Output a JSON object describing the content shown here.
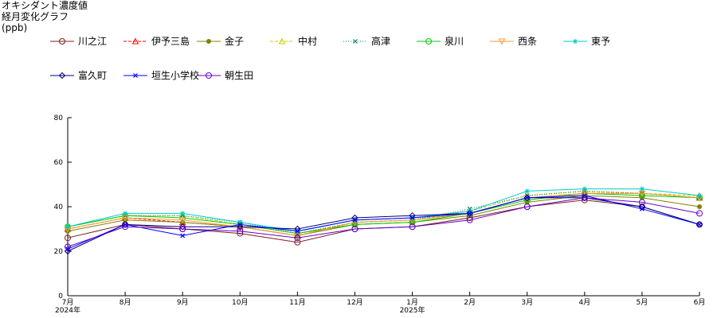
{
  "title": "オキシダント濃度値",
  "subtitle": "経月変化グラフ",
  "unit": "(ppb)",
  "chart_data": {
    "type": "line",
    "title": "オキシダント濃度値",
    "subtitle": "経月変化グラフ",
    "ylabel": "(ppb)",
    "xlabel": "",
    "ylim": [
      0,
      80
    ],
    "yticks": [
      0,
      20,
      40,
      60,
      80
    ],
    "grid": false,
    "legend_position": "top",
    "categories": [
      "7月",
      "8月",
      "9月",
      "10月",
      "11月",
      "12月",
      "1月",
      "2月",
      "3月",
      "4月",
      "5月",
      "6月"
    ],
    "year_labels": [
      {
        "index": 0,
        "label": "2024年"
      },
      {
        "index": 6,
        "label": "2025年"
      }
    ],
    "series": [
      {
        "name": "川之江",
        "color": "#7a1f1f",
        "marker": "circle",
        "dash": "",
        "values": [
          26,
          32,
          30,
          28,
          24,
          30,
          31,
          35,
          40,
          43,
          40,
          32
        ]
      },
      {
        "name": "伊予三島",
        "color": "#ff0000",
        "marker": "triangle",
        "dash": "4,2",
        "values": [
          30,
          35,
          33,
          31,
          27,
          33,
          34,
          37,
          44,
          46,
          46,
          44
        ]
      },
      {
        "name": "金子",
        "color": "#808000",
        "marker": "dot",
        "dash": "",
        "values": [
          29,
          34,
          33,
          31,
          27,
          32,
          33,
          36,
          42,
          45,
          44,
          40
        ]
      },
      {
        "name": "中村",
        "color": "#cccc00",
        "marker": "triangle",
        "dash": "4,2",
        "values": [
          31,
          36,
          36,
          32,
          28,
          33,
          34,
          38,
          45,
          47,
          46,
          45
        ]
      },
      {
        "name": "高津",
        "color": "#008060",
        "marker": "x",
        "dash": "1,2",
        "values": [
          31,
          36,
          36,
          33,
          28,
          33,
          34,
          39,
          45,
          47,
          46,
          44
        ]
      },
      {
        "name": "泉川",
        "color": "#00cc00",
        "marker": "circle",
        "dash": "",
        "values": [
          31,
          36,
          35,
          32,
          28,
          32,
          33,
          37,
          43,
          46,
          45,
          44
        ]
      },
      {
        "name": "西条",
        "color": "#ff9933",
        "marker": "triangle-down",
        "dash": "",
        "values": [
          30,
          35,
          34,
          31,
          27,
          33,
          34,
          37,
          44,
          46,
          46,
          44
        ]
      },
      {
        "name": "東予",
        "color": "#00cccc",
        "marker": "star",
        "dash": "",
        "values": [
          31,
          37,
          37,
          33,
          29,
          34,
          35,
          38,
          47,
          48,
          48,
          45
        ]
      },
      {
        "name": "富久町",
        "color": "#000080",
        "marker": "diamond",
        "dash": "",
        "values": [
          20,
          32,
          31,
          31,
          30,
          35,
          36,
          37,
          44,
          44,
          40,
          32
        ]
      },
      {
        "name": "垣生小学校",
        "color": "#0000ff",
        "marker": "x",
        "dash": "",
        "values": [
          21,
          32,
          27,
          32,
          29,
          34,
          35,
          37,
          44,
          45,
          39,
          32
        ]
      },
      {
        "name": "朝生田",
        "color": "#6600cc",
        "marker": "circle",
        "dash": "",
        "values": [
          22,
          31,
          30,
          29,
          26,
          30,
          31,
          34,
          40,
          44,
          42,
          37
        ]
      }
    ]
  }
}
